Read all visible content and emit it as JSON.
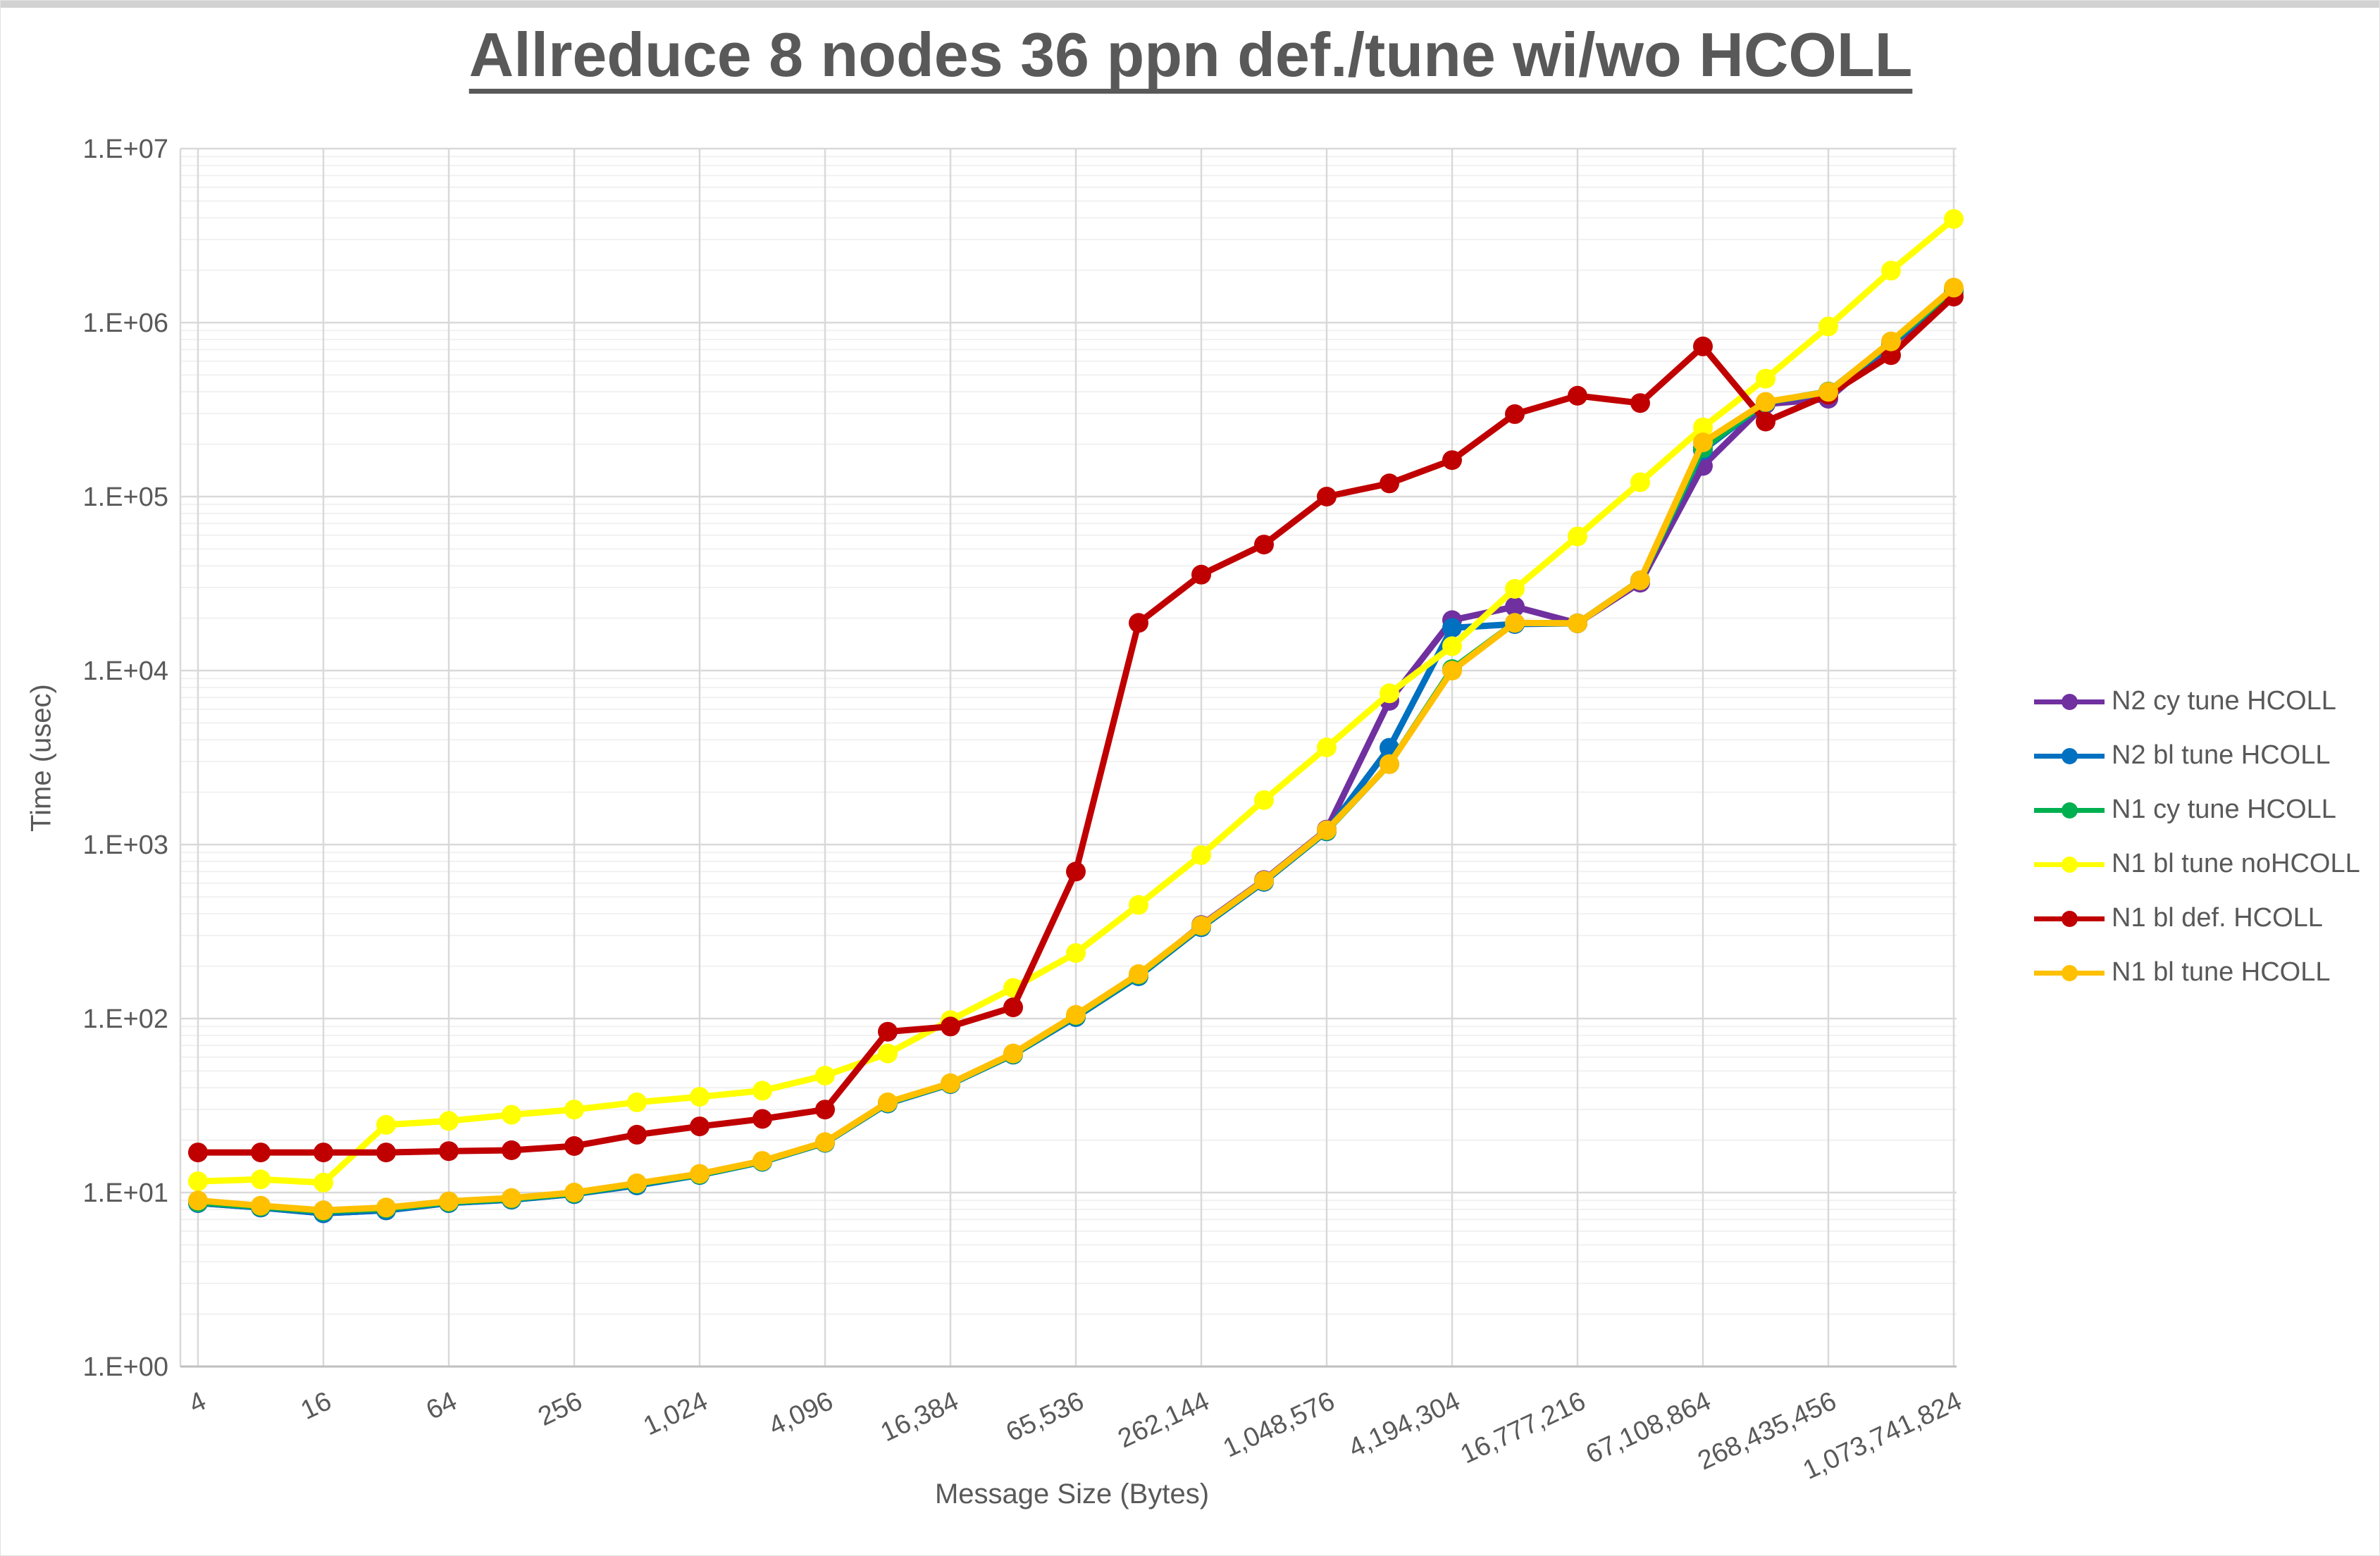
{
  "page": {
    "top_strip_color": "#d2d2d2",
    "background": "#ffffff"
  },
  "chart_data": {
    "type": "line",
    "title": "Allreduce 8 nodes 36 ppn def./tune wi/wo HCOLL",
    "xlabel": "Message Size (Bytes)",
    "ylabel": "Time (usec)",
    "x_scale": "log2",
    "y_scale": "log10",
    "xlim": [
      4,
      1073741824
    ],
    "ylim": [
      1,
      10000000
    ],
    "grid": "on",
    "legend_position": "right",
    "x_tick_labels": [
      "4",
      "16",
      "64",
      "256",
      "1,024",
      "4,096",
      "16,384",
      "65,536",
      "262,144",
      "1,048,576",
      "4,194,304",
      "16,777,216",
      "67,108,864",
      "268,435,456",
      "1,073,741,824"
    ],
    "y_tick_labels": [
      "1.E+00",
      "1.E+01",
      "1.E+02",
      "1.E+03",
      "1.E+04",
      "1.E+05",
      "1.E+06",
      "1.E+07"
    ],
    "x": [
      4,
      8,
      16,
      32,
      64,
      128,
      256,
      512,
      1024,
      2048,
      4096,
      8192,
      16384,
      32768,
      65536,
      131072,
      262144,
      524288,
      1048576,
      2097152,
      4194304,
      8388608,
      16777216,
      33554432,
      67108864,
      134217728,
      268435456,
      536870912,
      1073741824
    ],
    "series": [
      {
        "name": "N2 cy tune HCOLL",
        "color": "#7030A0",
        "values": [
          8.7,
          8.2,
          7.6,
          7.9,
          8.7,
          9.1,
          9.8,
          11.0,
          12.7,
          15.1,
          19.4,
          32.7,
          42.3,
          62.5,
          103,
          177,
          345,
          625,
          1220,
          6700,
          19500,
          23300,
          18700,
          32000,
          150000,
          340000,
          365000,
          740000,
          1500000
        ]
      },
      {
        "name": "N2 bl tune HCOLL",
        "color": "#0070C0",
        "values": [
          8.7,
          8.2,
          7.6,
          7.9,
          8.7,
          9.1,
          9.8,
          11.0,
          12.6,
          15.0,
          19.3,
          32.5,
          42.0,
          62.0,
          102,
          175,
          335,
          610,
          1190,
          3600,
          17600,
          18500,
          18700,
          33000,
          185000,
          348000,
          398000,
          750000,
          1520000
        ]
      },
      {
        "name": "N1 cy tune HCOLL",
        "color": "#00B050",
        "values": [
          8.8,
          8.3,
          7.8,
          8.1,
          8.8,
          9.2,
          9.9,
          11.2,
          12.7,
          15.1,
          19.4,
          32.8,
          42.3,
          62.5,
          104,
          178,
          340,
          618,
          1200,
          2900,
          10200,
          18800,
          18700,
          33000,
          190000,
          348000,
          402000,
          770000,
          1545000
        ]
      },
      {
        "name": "N1 bl tune noHCOLL",
        "color": "#FFFF00",
        "values": [
          11.6,
          11.9,
          11.4,
          24.5,
          25.8,
          28,
          30,
          33,
          35.5,
          38.5,
          47,
          63,
          98,
          150,
          238,
          450,
          870,
          1800,
          3620,
          7400,
          13800,
          29500,
          59000,
          121000,
          250000,
          476000,
          950000,
          1990000,
          3940000
        ]
      },
      {
        "name": "N1 bl def. HCOLL",
        "color": "#C00000",
        "values": [
          17,
          17,
          17,
          17,
          17.3,
          17.5,
          18.5,
          21.5,
          24,
          26.5,
          30,
          84,
          90,
          116,
          700,
          18800,
          35600,
          53000,
          100000,
          119000,
          162000,
          298000,
          380000,
          345000,
          730000,
          270000,
          385000,
          650000,
          1410000
        ]
      },
      {
        "name": "N1 bl tune HCOLL",
        "color": "#FFC000",
        "values": [
          9.0,
          8.4,
          7.9,
          8.2,
          8.9,
          9.3,
          10.0,
          11.3,
          12.8,
          15.2,
          19.5,
          33,
          42.5,
          63,
          105,
          180,
          342,
          620,
          1210,
          2900,
          10000,
          18800,
          18700,
          33000,
          205000,
          350000,
          400000,
          780000,
          1590000
        ]
      }
    ]
  },
  "colors": {
    "text": "#595959",
    "grid_major": "#D9D9D9",
    "grid_minor": "#F1F1F1",
    "axis_line": "#BFBFBF"
  }
}
